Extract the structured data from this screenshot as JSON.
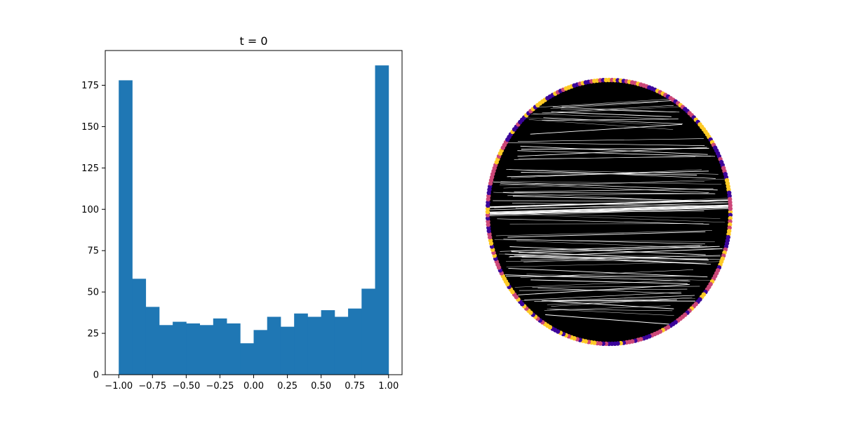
{
  "chart_data": [
    {
      "type": "bar",
      "subtype": "histogram",
      "title": "t = 0",
      "xlabel": "",
      "ylabel": "",
      "bin_edges": [
        -1.0,
        -0.9,
        -0.8,
        -0.7,
        -0.6,
        -0.5,
        -0.4,
        -0.3,
        -0.2,
        -0.1,
        0.0,
        0.1,
        0.2,
        0.3,
        0.4,
        0.5,
        0.6,
        0.7,
        0.8,
        0.9,
        1.0
      ],
      "values": [
        178,
        58,
        41,
        30,
        32,
        31,
        30,
        34,
        31,
        19,
        27,
        35,
        29,
        37,
        35,
        39,
        35,
        40,
        52,
        187
      ],
      "xlim": [
        -1.1,
        1.1
      ],
      "ylim": [
        0,
        196
      ],
      "xticks": [
        "−1.00",
        "−0.75",
        "−0.50",
        "−0.25",
        "0.00",
        "0.25",
        "0.50",
        "0.75",
        "1.00"
      ],
      "yticks": [
        "0",
        "25",
        "50",
        "75",
        "100",
        "125",
        "150",
        "175"
      ],
      "bar_color": "#1f77b4",
      "grid": false,
      "legend": "none"
    },
    {
      "type": "network",
      "layout": "circular",
      "title": "",
      "node_colormap": [
        "#3b049a",
        "#cc4778",
        "#fdca26"
      ],
      "edge_color": "#000000",
      "axes": "off"
    }
  ]
}
